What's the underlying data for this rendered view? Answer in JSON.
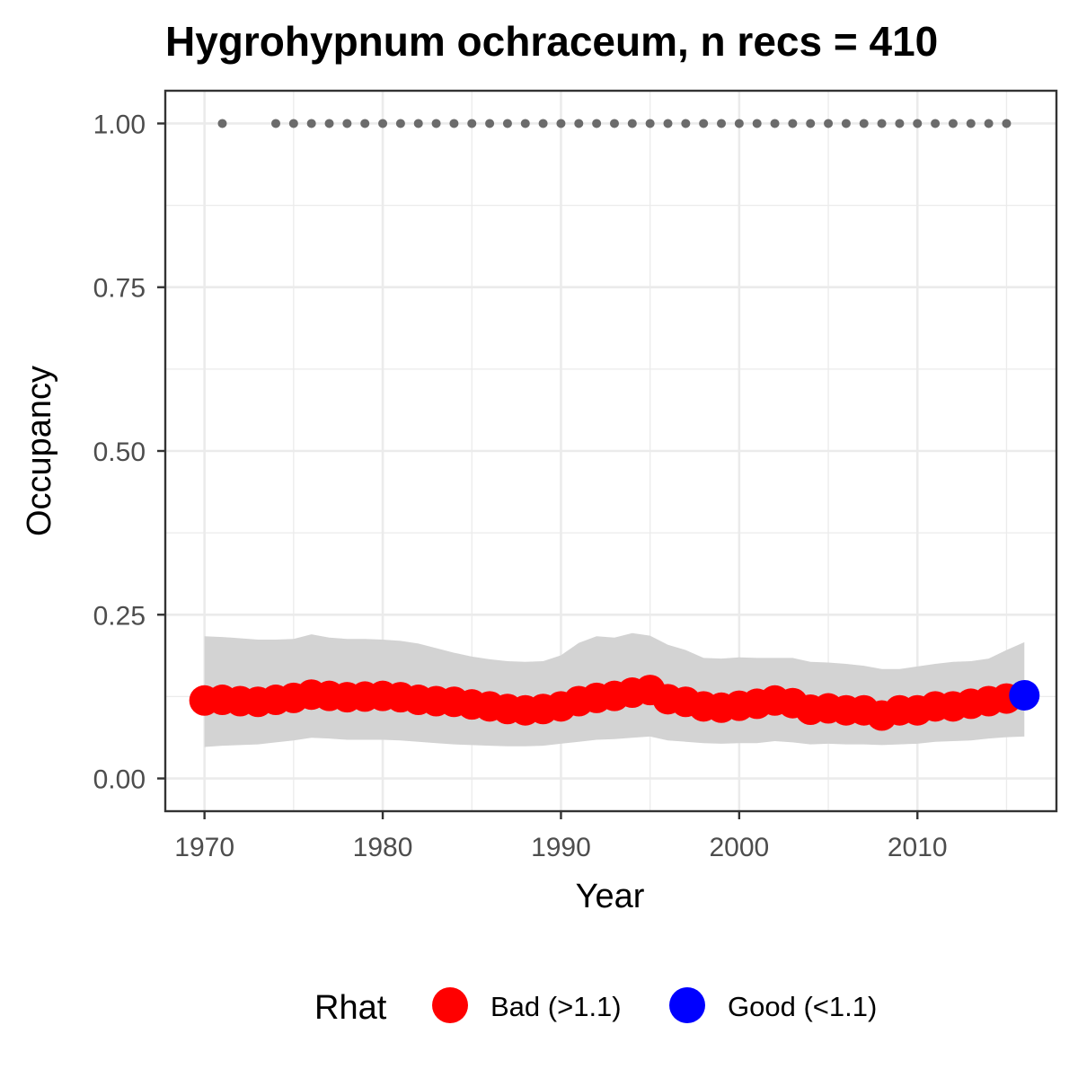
{
  "chart_data": {
    "type": "scatter",
    "title": "Hygrohypnum ochraceum, n recs = 410",
    "xlabel": "Year",
    "ylabel": "Occupancy",
    "xlim": [
      1967.8,
      2017.8
    ],
    "ylim": [
      -0.05,
      1.05
    ],
    "x_ticks": [
      1970,
      1980,
      1990,
      2000,
      2010
    ],
    "x_tick_labels": [
      "1970",
      "1980",
      "1990",
      "2000",
      "2010"
    ],
    "y_ticks": [
      0,
      0.25,
      0.5,
      0.75,
      1
    ],
    "y_tick_labels": [
      "0.00",
      "0.25",
      "0.50",
      "0.75",
      "1.00"
    ],
    "grid": true,
    "legend_position": "bottom",
    "legend": {
      "title": "Rhat",
      "entries": [
        {
          "label": "Bad (>1.1)",
          "color": "#ff0000"
        },
        {
          "label": "Good (<1.1)",
          "color": "#0000ff"
        }
      ]
    },
    "colors": {
      "bad": "#ff0000",
      "good": "#0000ff",
      "ribbon": "#d3d3d3",
      "records": "#6b6b6b",
      "panel_border": "#333333",
      "grid": "#ebebeb"
    },
    "series": [
      {
        "name": "Bad (>1.1)",
        "x": [
          1970,
          1971,
          1972,
          1973,
          1974,
          1975,
          1976,
          1977,
          1978,
          1979,
          1980,
          1981,
          1982,
          1983,
          1984,
          1985,
          1986,
          1987,
          1988,
          1989,
          1990,
          1991,
          1992,
          1993,
          1994,
          1995,
          1996,
          1997,
          1998,
          1999,
          2000,
          2001,
          2002,
          2003,
          2004,
          2005,
          2006,
          2007,
          2008,
          2009,
          2010,
          2011,
          2012,
          2013,
          2014,
          2015
        ],
        "y": [
          0.119,
          0.12,
          0.118,
          0.117,
          0.12,
          0.123,
          0.128,
          0.126,
          0.124,
          0.125,
          0.126,
          0.124,
          0.12,
          0.118,
          0.117,
          0.113,
          0.11,
          0.106,
          0.104,
          0.106,
          0.11,
          0.118,
          0.123,
          0.126,
          0.131,
          0.135,
          0.121,
          0.117,
          0.11,
          0.108,
          0.111,
          0.114,
          0.119,
          0.115,
          0.105,
          0.107,
          0.104,
          0.104,
          0.096,
          0.104,
          0.104,
          0.11,
          0.11,
          0.114,
          0.118,
          0.122
        ]
      },
      {
        "name": "Good (<1.1)",
        "x": [
          2016
        ],
        "y": [
          0.127
        ]
      }
    ],
    "ribbon": {
      "x": [
        1970,
        1971,
        1972,
        1973,
        1974,
        1975,
        1976,
        1977,
        1978,
        1979,
        1980,
        1981,
        1982,
        1983,
        1984,
        1985,
        1986,
        1987,
        1988,
        1989,
        1990,
        1991,
        1992,
        1993,
        1994,
        1995,
        1996,
        1997,
        1998,
        1999,
        2000,
        2001,
        2002,
        2003,
        2004,
        2005,
        2006,
        2007,
        2008,
        2009,
        2010,
        2011,
        2012,
        2013,
        2014,
        2015,
        2016
      ],
      "lower": [
        0.048,
        0.05,
        0.051,
        0.052,
        0.055,
        0.058,
        0.062,
        0.061,
        0.059,
        0.059,
        0.059,
        0.058,
        0.056,
        0.054,
        0.052,
        0.051,
        0.05,
        0.049,
        0.049,
        0.05,
        0.053,
        0.056,
        0.059,
        0.06,
        0.062,
        0.064,
        0.058,
        0.056,
        0.054,
        0.053,
        0.054,
        0.054,
        0.057,
        0.055,
        0.052,
        0.053,
        0.052,
        0.052,
        0.051,
        0.052,
        0.053,
        0.056,
        0.057,
        0.058,
        0.061,
        0.063,
        0.064
      ],
      "upper": [
        0.217,
        0.216,
        0.214,
        0.212,
        0.212,
        0.213,
        0.22,
        0.215,
        0.213,
        0.213,
        0.212,
        0.21,
        0.206,
        0.199,
        0.192,
        0.186,
        0.182,
        0.179,
        0.178,
        0.179,
        0.188,
        0.207,
        0.217,
        0.215,
        0.222,
        0.218,
        0.204,
        0.196,
        0.184,
        0.183,
        0.185,
        0.184,
        0.184,
        0.184,
        0.178,
        0.177,
        0.175,
        0.172,
        0.167,
        0.167,
        0.171,
        0.175,
        0.178,
        0.179,
        0.183,
        0.196,
        0.208
      ]
    },
    "records": {
      "x": [
        1971,
        1974,
        1975,
        1976,
        1977,
        1978,
        1979,
        1980,
        1981,
        1982,
        1983,
        1984,
        1985,
        1986,
        1987,
        1988,
        1989,
        1990,
        1991,
        1992,
        1993,
        1994,
        1995,
        1996,
        1997,
        1998,
        1999,
        2000,
        2001,
        2002,
        2003,
        2004,
        2005,
        2006,
        2007,
        2008,
        2009,
        2010,
        2011,
        2012,
        2013,
        2014,
        2015
      ],
      "y": 1
    }
  }
}
